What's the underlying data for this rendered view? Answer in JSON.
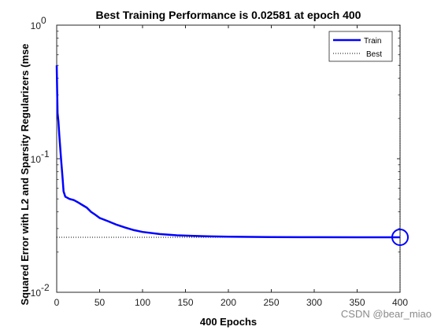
{
  "figure": {
    "title": "Best Training Performance is 0.02581 at epoch 400",
    "watermark": "CSDN @bear_miao"
  },
  "chart_data": {
    "type": "line",
    "title": "Best Training Performance is 0.02581 at epoch 400",
    "xlabel": "400 Epochs",
    "ylabel": "Squared Error with L2 and Sparsity Regularizers  (mse",
    "xlim": [
      0,
      400
    ],
    "ylim": [
      0.01,
      1
    ],
    "yscale": "log",
    "grid": false,
    "legend_position": "top-right",
    "x_ticks": [
      0,
      50,
      100,
      150,
      200,
      250,
      300,
      350,
      400
    ],
    "x_tick_labels": [
      "0",
      "50",
      "100",
      "150",
      "200",
      "250",
      "300",
      "350",
      "400"
    ],
    "y_ticks": [
      0.01,
      0.1,
      1
    ],
    "y_tick_labels": [
      {
        "base": "10",
        "exp": "-2"
      },
      {
        "base": "10",
        "exp": "-1"
      },
      {
        "base": "10",
        "exp": "0"
      }
    ],
    "series": [
      {
        "name": "Train",
        "color": "#0000ff",
        "x": [
          0,
          1,
          2,
          3,
          5,
          7,
          8,
          10,
          15,
          20,
          25,
          30,
          35,
          40,
          45,
          50,
          60,
          70,
          80,
          90,
          100,
          120,
          140,
          160,
          180,
          200,
          250,
          300,
          350,
          400
        ],
        "y": [
          0.5,
          0.22,
          0.19,
          0.15,
          0.1,
          0.07,
          0.057,
          0.052,
          0.05,
          0.049,
          0.047,
          0.045,
          0.043,
          0.04,
          0.038,
          0.036,
          0.034,
          0.032,
          0.0305,
          0.0292,
          0.0283,
          0.0273,
          0.0267,
          0.0264,
          0.0262,
          0.0261,
          0.0259,
          0.02585,
          0.02582,
          0.02581
        ]
      },
      {
        "name": "Best",
        "color": "#000000",
        "style": "dotted",
        "value": 0.02581,
        "epoch": 400
      }
    ],
    "best_marker": {
      "epoch": 400,
      "value": 0.02581,
      "color": "#0000ff",
      "shape": "circle"
    }
  }
}
